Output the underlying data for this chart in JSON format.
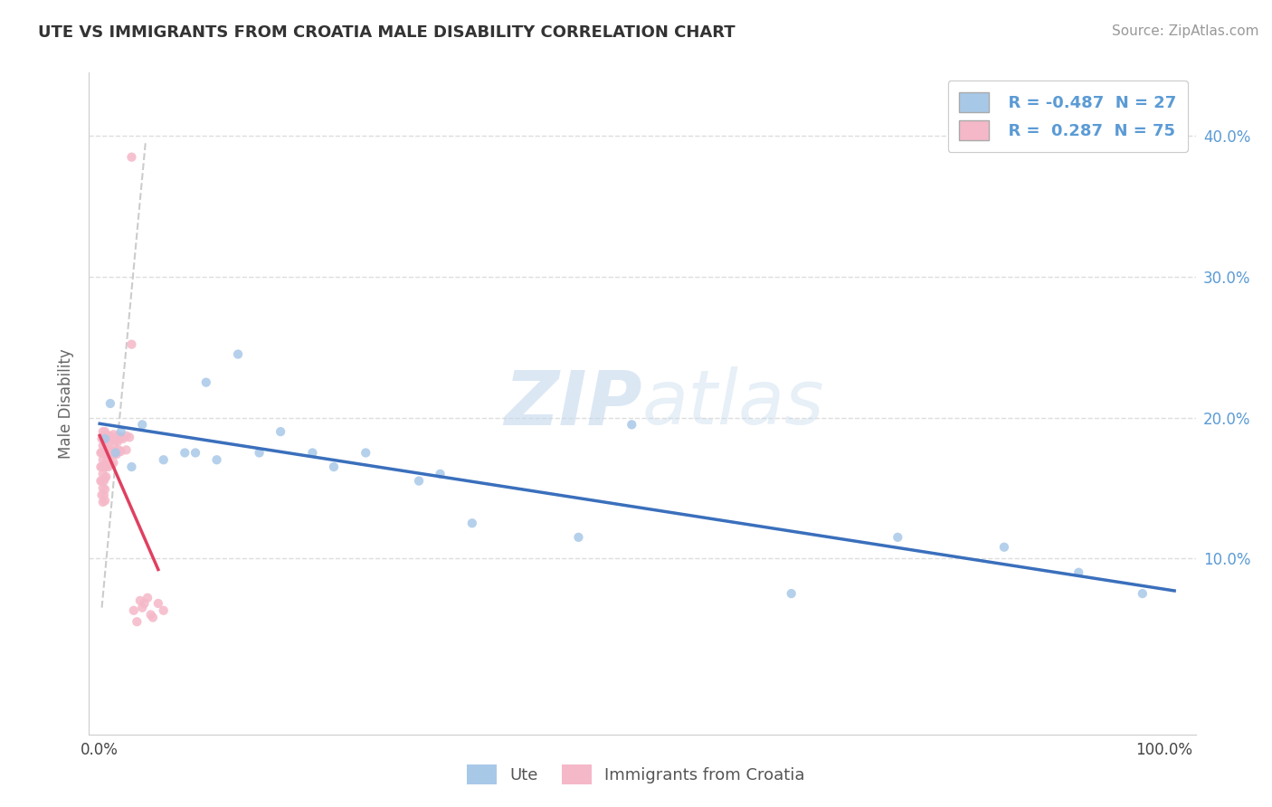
{
  "title": "UTE VS IMMIGRANTS FROM CROATIA MALE DISABILITY CORRELATION CHART",
  "source": "Source: ZipAtlas.com",
  "ylabel": "Male Disability",
  "xlim": [
    -0.01,
    1.03
  ],
  "ylim": [
    -0.025,
    0.445
  ],
  "ute_color": "#a8c8e8",
  "croatia_color": "#f5b8c8",
  "ute_line_color": "#3a6fbc",
  "croatia_line_color": "#e04060",
  "ref_line_color": "#cccccc",
  "legend_R_ute": "-0.487",
  "legend_N_ute": "27",
  "legend_R_croatia": "0.287",
  "legend_N_croatia": "75",
  "ute_scatter_x": [
    0.005,
    0.01,
    0.015,
    0.02,
    0.03,
    0.04,
    0.06,
    0.08,
    0.09,
    0.1,
    0.11,
    0.13,
    0.15,
    0.17,
    0.2,
    0.22,
    0.25,
    0.3,
    0.32,
    0.35,
    0.45,
    0.5,
    0.65,
    0.75,
    0.85,
    0.92,
    0.98
  ],
  "ute_scatter_y": [
    0.185,
    0.21,
    0.175,
    0.19,
    0.165,
    0.195,
    0.17,
    0.175,
    0.175,
    0.225,
    0.17,
    0.245,
    0.175,
    0.19,
    0.175,
    0.165,
    0.175,
    0.155,
    0.16,
    0.125,
    0.115,
    0.195,
    0.075,
    0.115,
    0.108,
    0.09,
    0.075
  ],
  "croatia_scatter_x": [
    0.001,
    0.001,
    0.001,
    0.002,
    0.002,
    0.002,
    0.002,
    0.002,
    0.003,
    0.003,
    0.003,
    0.003,
    0.003,
    0.003,
    0.004,
    0.004,
    0.004,
    0.004,
    0.004,
    0.005,
    0.005,
    0.005,
    0.005,
    0.005,
    0.005,
    0.005,
    0.006,
    0.006,
    0.006,
    0.006,
    0.007,
    0.007,
    0.007,
    0.008,
    0.008,
    0.008,
    0.009,
    0.009,
    0.01,
    0.01,
    0.01,
    0.011,
    0.011,
    0.012,
    0.012,
    0.013,
    0.013,
    0.013,
    0.014,
    0.014,
    0.015,
    0.015,
    0.016,
    0.016,
    0.017,
    0.018,
    0.018,
    0.02,
    0.02,
    0.022,
    0.025,
    0.025,
    0.028,
    0.03,
    0.03,
    0.032,
    0.035,
    0.038,
    0.04,
    0.042,
    0.045,
    0.048,
    0.05,
    0.055,
    0.06
  ],
  "croatia_scatter_y": [
    0.175,
    0.165,
    0.155,
    0.185,
    0.175,
    0.165,
    0.155,
    0.145,
    0.19,
    0.18,
    0.17,
    0.16,
    0.15,
    0.14,
    0.185,
    0.175,
    0.165,
    0.155,
    0.145,
    0.19,
    0.182,
    0.174,
    0.165,
    0.157,
    0.149,
    0.141,
    0.188,
    0.178,
    0.168,
    0.158,
    0.186,
    0.176,
    0.166,
    0.185,
    0.175,
    0.165,
    0.183,
    0.173,
    0.187,
    0.177,
    0.167,
    0.185,
    0.175,
    0.184,
    0.174,
    0.188,
    0.178,
    0.168,
    0.186,
    0.176,
    0.185,
    0.175,
    0.184,
    0.174,
    0.183,
    0.187,
    0.177,
    0.186,
    0.176,
    0.185,
    0.187,
    0.177,
    0.186,
    0.385,
    0.252,
    0.063,
    0.055,
    0.07,
    0.065,
    0.068,
    0.072,
    0.06,
    0.058,
    0.068,
    0.063
  ],
  "background_color": "#ffffff",
  "grid_color": "#dddddd",
  "watermark_color": "#d5e5f5",
  "title_fontsize": 13,
  "source_fontsize": 11,
  "tick_fontsize": 12,
  "legend_fontsize": 13,
  "ylabel_fontsize": 12
}
